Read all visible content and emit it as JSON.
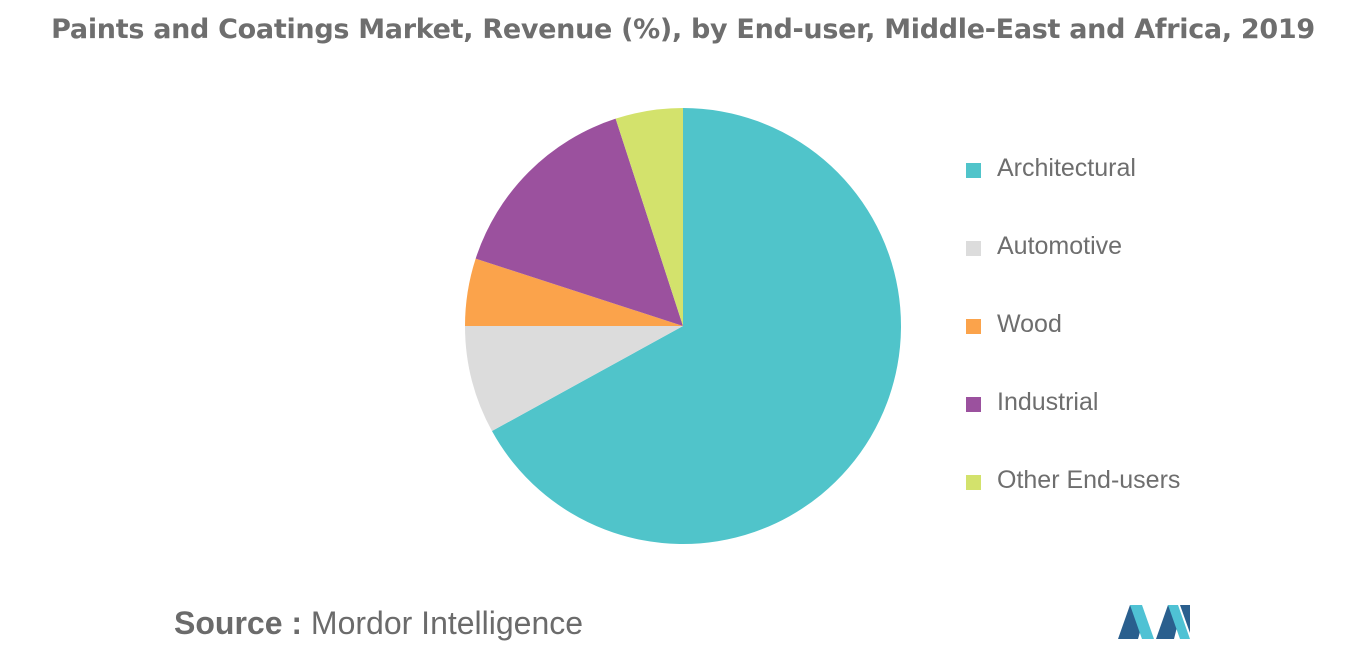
{
  "chart_data": {
    "type": "pie",
    "title": "Paints and Coatings Market, Revenue (%), by End-user, Middle-East and Africa, 2019",
    "slices": [
      {
        "label": "Architectural",
        "value": 67,
        "color": "#50c4ca"
      },
      {
        "label": "Automotive",
        "value": 8,
        "color": "#dcdcdc"
      },
      {
        "label": "Wood",
        "value": 5,
        "color": "#fba34b"
      },
      {
        "label": "Industrial",
        "value": 15,
        "color": "#9b519e"
      },
      {
        "label": "Other End-users",
        "value": 5,
        "color": "#d3e26c"
      }
    ],
    "legend_position": "right"
  },
  "source": {
    "label": "Source :",
    "text": "Mordor Intelligence"
  },
  "logo": {
    "icon": "mordor-intelligence-logo",
    "colors": [
      "#2a5f8e",
      "#4fc2d4"
    ]
  }
}
